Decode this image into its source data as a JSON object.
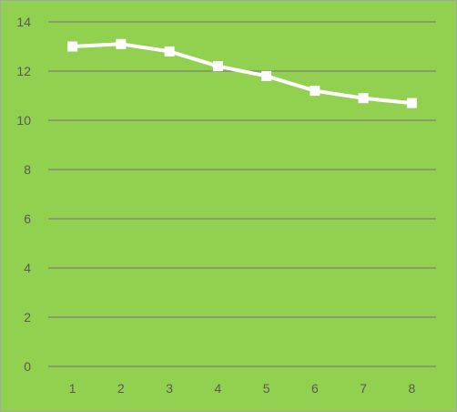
{
  "colors": {
    "background": "#92d050",
    "gridline": "#7f7f7f",
    "series": "#ffffff",
    "tick_label": "#595959"
  },
  "chart_data": {
    "type": "line",
    "title": "",
    "xlabel": "",
    "ylabel": "",
    "categories": [
      "1",
      "2",
      "3",
      "4",
      "5",
      "6",
      "7",
      "8"
    ],
    "series": [
      {
        "values": [
          13.0,
          13.1,
          12.8,
          12.2,
          11.8,
          11.2,
          10.9,
          10.7
        ],
        "marker": "square"
      }
    ],
    "ylim": [
      0,
      14
    ],
    "y_ticks": [
      0,
      2,
      4,
      6,
      8,
      10,
      12,
      14
    ],
    "grid": true,
    "legend": "none"
  }
}
